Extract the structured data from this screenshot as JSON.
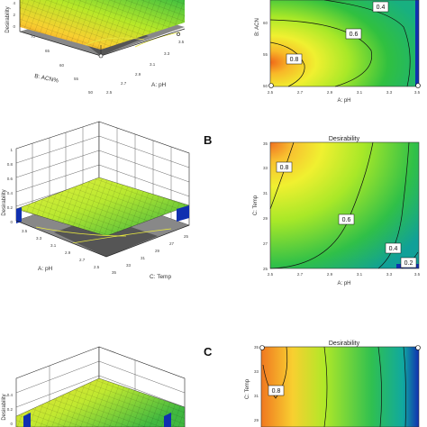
{
  "chart_data": [
    {
      "type": "surface3d",
      "panel": "A",
      "title": "",
      "zlabel": "Desirability",
      "z_ticks": [
        "0",
        "2",
        "4"
      ],
      "xlabel": "B: ACN%",
      "x_ticks": [
        "70",
        "65",
        "60",
        "55",
        "50"
      ],
      "ylabel": "A: pH",
      "y_ticks": [
        "3.5",
        "3.3",
        "3.1",
        "2.9",
        "2.7",
        "2.5"
      ]
    },
    {
      "type": "contour",
      "panel": "A",
      "title": "",
      "ylabel": "B: ACN",
      "y_ticks": [
        "50",
        "55",
        "60",
        "65",
        "70"
      ],
      "xlabel": "A: pH",
      "x_ticks": [
        "2.5",
        "2.7",
        "2.9",
        "3.1",
        "3.3",
        "3.5"
      ],
      "contour_labels": [
        "0.8",
        "0.6",
        "0.4"
      ]
    },
    {
      "type": "surface3d",
      "panel": "B",
      "title": "",
      "zlabel": "Desirability",
      "z_ticks": [
        "0",
        "0.2",
        "0.4",
        "0.6",
        "0.8",
        "1"
      ],
      "xlabel": "A: pH",
      "x_ticks": [
        "3.5",
        "3.3",
        "3.1",
        "2.9",
        "2.7",
        "2.5"
      ],
      "ylabel": "C: Temp",
      "y_ticks": [
        "25",
        "27",
        "29",
        "31",
        "33",
        "35"
      ]
    },
    {
      "type": "contour",
      "panel": "B",
      "title": "Desirability",
      "ylabel": "C: Temp",
      "y_ticks": [
        "25",
        "27",
        "29",
        "31",
        "33",
        "35"
      ],
      "xlabel": "A: pH",
      "x_ticks": [
        "2.5",
        "2.7",
        "2.9",
        "3.1",
        "3.3",
        "3.5"
      ],
      "contour_labels": [
        "0.8",
        "0.6",
        "0.4",
        "0.2"
      ]
    },
    {
      "type": "surface3d",
      "panel": "C",
      "title": "",
      "zlabel": "Desirability",
      "z_ticks": [
        "0",
        "0.2",
        "0.4"
      ]
    },
    {
      "type": "contour",
      "panel": "C",
      "title": "Desirability",
      "ylabel": "C: Temp",
      "y_ticks": [
        "29",
        "31",
        "33",
        "35"
      ],
      "contour_labels": [
        "0.8"
      ]
    }
  ],
  "colors": {
    "hot": "#f07820",
    "mid": "#f8e830",
    "warm": "#c8f020",
    "cool": "#20b040",
    "cold": "#10a090",
    "edge": "#1020b0"
  }
}
